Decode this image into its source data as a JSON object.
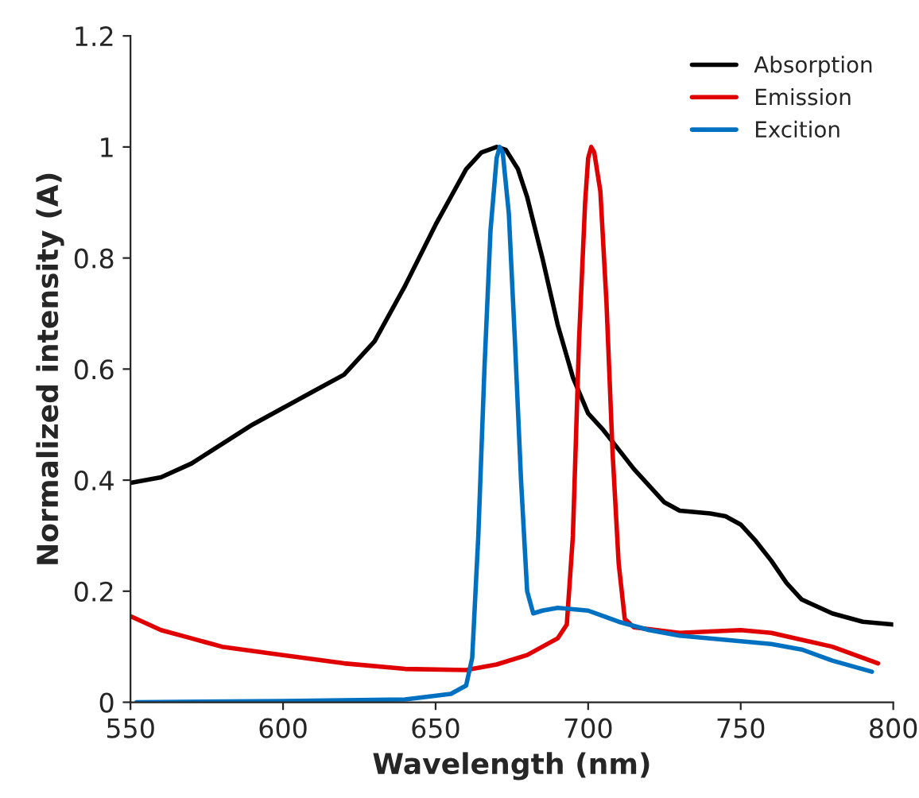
{
  "chart_data": {
    "type": "line",
    "xlabel": "Wavelength (nm)",
    "ylabel": "Normalized intensity (A)",
    "xlim": [
      550,
      800
    ],
    "xticks": [
      550,
      600,
      650,
      700,
      750,
      800
    ],
    "ylim": [
      0,
      1.2
    ],
    "yticks": [
      0,
      0.2,
      0.4,
      0.6,
      0.8,
      1,
      1.2
    ],
    "legend": "top right",
    "grid": false,
    "series": [
      {
        "name": "Absorption",
        "color": "#000000",
        "x": [
          550,
          560,
          570,
          580,
          590,
          600,
          610,
          620,
          630,
          640,
          650,
          655,
          660,
          665,
          670,
          673,
          677,
          680,
          685,
          690,
          695,
          700,
          705,
          710,
          715,
          720,
          725,
          730,
          740,
          745,
          750,
          755,
          760,
          765,
          770,
          780,
          790,
          800
        ],
        "values": [
          0.395,
          0.405,
          0.43,
          0.465,
          0.5,
          0.53,
          0.56,
          0.59,
          0.65,
          0.75,
          0.86,
          0.91,
          0.96,
          0.99,
          1.0,
          0.995,
          0.96,
          0.91,
          0.8,
          0.68,
          0.585,
          0.52,
          0.49,
          0.455,
          0.42,
          0.39,
          0.36,
          0.345,
          0.34,
          0.335,
          0.32,
          0.29,
          0.255,
          0.215,
          0.185,
          0.16,
          0.145,
          0.14
        ]
      },
      {
        "name": "Emission",
        "color": "#e00000",
        "x": [
          550,
          560,
          570,
          580,
          600,
          620,
          640,
          660,
          670,
          680,
          690,
          693,
          695,
          697,
          699,
          700,
          701,
          702,
          704,
          706,
          708,
          710,
          712,
          715,
          730,
          750,
          760,
          780,
          795
        ],
        "values": [
          0.155,
          0.13,
          0.115,
          0.1,
          0.085,
          0.07,
          0.06,
          0.058,
          0.068,
          0.085,
          0.115,
          0.14,
          0.3,
          0.65,
          0.9,
          0.98,
          1.0,
          0.99,
          0.92,
          0.72,
          0.45,
          0.25,
          0.15,
          0.135,
          0.125,
          0.13,
          0.125,
          0.1,
          0.07
        ]
      },
      {
        "name": "Excition",
        "color": "#0070c0",
        "x": [
          552,
          600,
          640,
          655,
          660,
          662,
          664,
          666,
          668,
          670,
          671,
          672,
          674,
          676,
          678,
          680,
          682,
          685,
          690,
          700,
          710,
          720,
          730,
          750,
          760,
          770,
          780,
          793
        ],
        "values": [
          0.0,
          0.002,
          0.005,
          0.015,
          0.03,
          0.08,
          0.3,
          0.6,
          0.85,
          0.98,
          1.0,
          0.99,
          0.88,
          0.65,
          0.4,
          0.2,
          0.16,
          0.165,
          0.17,
          0.165,
          0.145,
          0.13,
          0.12,
          0.11,
          0.105,
          0.095,
          0.075,
          0.055
        ]
      }
    ]
  }
}
